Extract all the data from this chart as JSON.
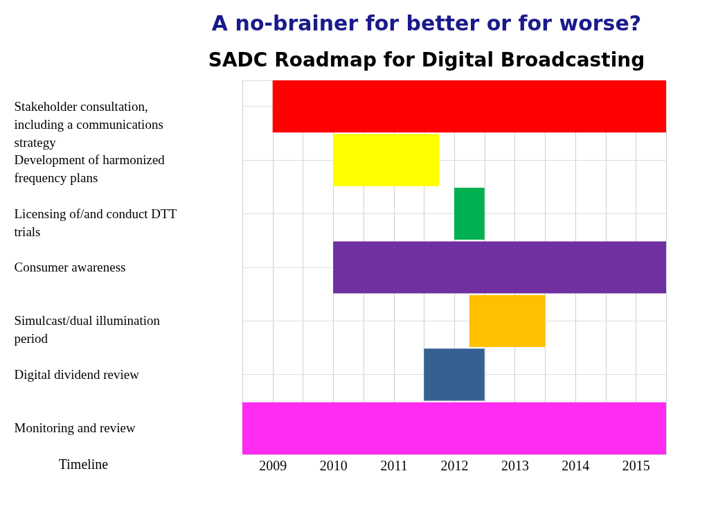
{
  "chart_data": {
    "type": "bar",
    "orientation": "horizontal",
    "title": "A no-brainer for better or for worse?",
    "subtitle": "SADC Roadmap for Digital Broadcasting",
    "xlabel": "Timeline",
    "categories": [
      "Stakeholder consultation, including a communications strategy",
      "Development of harmonized frequency plans",
      "Licensing of/and conduct DTT trials",
      "Consumer awareness",
      "Simulcast/dual illumination period",
      "Digital dividend review",
      "Monitoring and review"
    ],
    "base": [
      2009.5,
      2010.5,
      2012.5,
      2010.5,
      2012.75,
      2012,
      2009
    ],
    "values": [
      6.5,
      1.75,
      0.5,
      5.5,
      1.25,
      1,
      7
    ],
    "colors": [
      "#ff0000",
      "#ffff00",
      "#00b050",
      "#7030a0",
      "#ffc000",
      "#366092",
      "#ff2bf0"
    ],
    "xlim": [
      2009,
      2016
    ],
    "xticks": [
      {
        "value": 2009,
        "label": null
      },
      {
        "value": 2009.5,
        "label": "2009"
      },
      {
        "value": 2010,
        "label": null
      },
      {
        "value": 2010.5,
        "label": "2010"
      },
      {
        "value": 2011,
        "label": null
      },
      {
        "value": 2011.5,
        "label": "2011"
      },
      {
        "value": 2012,
        "label": null
      },
      {
        "value": 2012.5,
        "label": "2012"
      },
      {
        "value": 2013,
        "label": null
      },
      {
        "value": 2013.5,
        "label": "2013"
      },
      {
        "value": 2014,
        "label": null
      },
      {
        "value": 2014.5,
        "label": "2014"
      },
      {
        "value": 2015,
        "label": null
      },
      {
        "value": 2015.5,
        "label": "2015"
      },
      {
        "value": 2016,
        "label": null
      }
    ],
    "grid": true
  }
}
